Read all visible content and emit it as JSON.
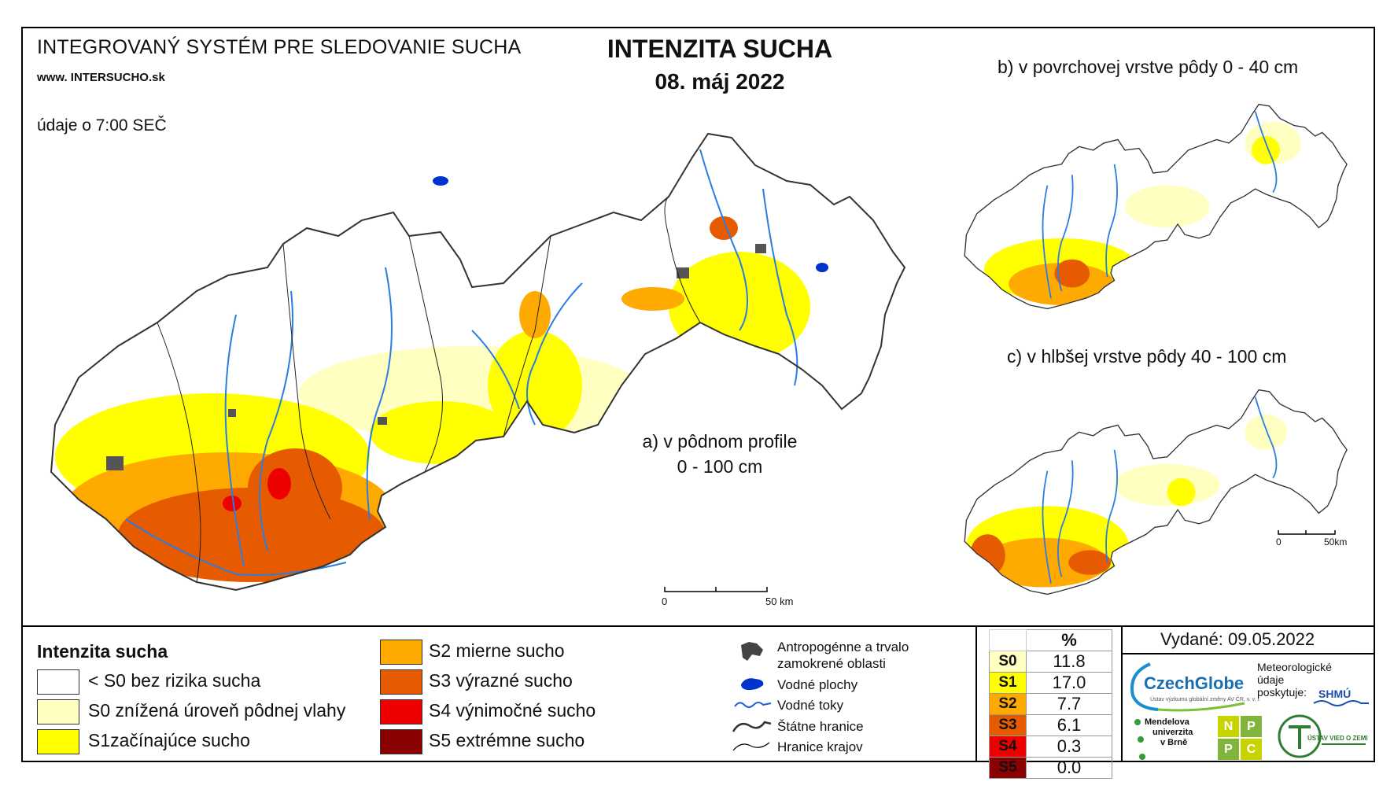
{
  "header": {
    "system_name": "INTEGROVANÝ SYSTÉM PRE SLEDOVANIE SUCHA",
    "website": "www. INTERSUCHO.sk",
    "data_time": "údaje o 7:00 SEČ",
    "title": "INTENZITA SUCHA",
    "date": "08. máj 2022"
  },
  "panels": {
    "a_line1": "a) v pôdnom profile",
    "a_line2": "0 - 100 cm",
    "b": "b) v povrchovej vrstve pôdy 0 - 40 cm",
    "c": "c) v hlbšej vrstve pôdy 40 - 100 cm"
  },
  "scalebar_main": {
    "zero": "0",
    "end": "50 km"
  },
  "scalebar_small": {
    "zero": "0",
    "end": "50km"
  },
  "legend": {
    "title": "Intenzita sucha",
    "classes": [
      {
        "label": "< S0 bez rizika sucha",
        "color": "#ffffff"
      },
      {
        "label": "S0 znížená úroveň pôdnej vlahy",
        "color": "#ffffc2"
      },
      {
        "label": "S1začínajúce sucho",
        "color": "#ffff00"
      },
      {
        "label": "S2 mierne sucho",
        "color": "#ffaa00"
      },
      {
        "label": "S3 výrazné sucho",
        "color": "#e65a00"
      },
      {
        "label": "S4 výnimočné sucho",
        "color": "#ee0000"
      },
      {
        "label": "S5 extrémne sucho",
        "color": "#8b0000"
      }
    ]
  },
  "legend2": {
    "urban_line1": "Antropogénne a trvalo",
    "urban_line2": "zamokrené oblasti",
    "water_bodies": "Vodné plochy",
    "rivers": "Vodné toky",
    "state_border": "Štátne hranice",
    "region_border": "Hranice krajov"
  },
  "percent_table": {
    "header": "%",
    "rows": [
      {
        "key": "S0",
        "value": "11.8",
        "color": "#ffffc2"
      },
      {
        "key": "S1",
        "value": "17.0",
        "color": "#ffff00"
      },
      {
        "key": "S2",
        "value": "7.7",
        "color": "#ffaa00"
      },
      {
        "key": "S3",
        "value": "6.1",
        "color": "#e65a00"
      },
      {
        "key": "S4",
        "value": "0.3",
        "color": "#ee0000"
      },
      {
        "key": "S5",
        "value": "0.0",
        "color": "#8b0000"
      }
    ]
  },
  "issued": "Vydané: 09.05.2022",
  "logos": {
    "czechglobe": "CzechGlobe",
    "czechglobe_sub": "Ústav výzkumu globální změny AV ČR, v. v. i.",
    "meteo_line1": "Meteorologické",
    "meteo_line2": "údaje",
    "meteo_line3": "poskytuje:",
    "shmu": "SHMÚ",
    "mendel_line1": "Mendelova",
    "mendel_line2": "univerzita",
    "mendel_line3": "v Brně",
    "npp_letters": [
      "N",
      "P",
      "P",
      "C"
    ],
    "uvz": "ÚSTAV VIED O ZEMI"
  }
}
